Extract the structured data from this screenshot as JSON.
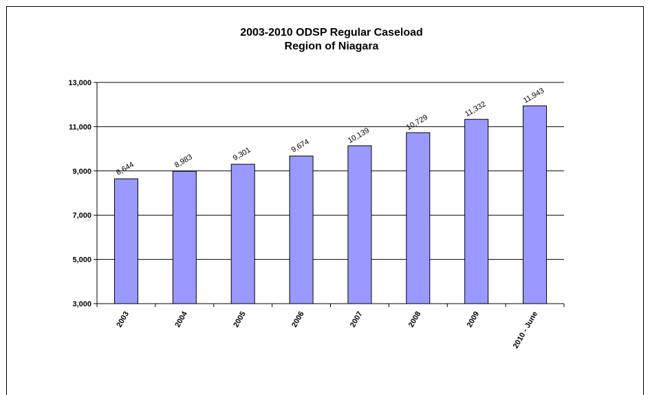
{
  "chart_data": {
    "type": "bar",
    "title_line1": "2003-2010 ODSP Regular Caseload",
    "title_line2": "Region of Niagara",
    "categories": [
      "2003",
      "2004",
      "2005",
      "2006",
      "2007",
      "2008",
      "2009",
      "2010 - June"
    ],
    "values": [
      8644,
      8983,
      9301,
      9674,
      10139,
      10729,
      11332,
      11943
    ],
    "data_labels": [
      "8,644",
      "8,983",
      "9,301",
      "9,674",
      "10,139",
      "10,729",
      "11,332",
      "11,943"
    ],
    "ylim": [
      3000,
      13000
    ],
    "yticks": [
      3000,
      5000,
      7000,
      9000,
      11000,
      13000
    ],
    "ytick_labels": [
      "3,000",
      "5,000",
      "7,000",
      "9,000",
      "11,000",
      "13,000"
    ],
    "grid": true,
    "legend": "none",
    "bar_color": "#9999ff",
    "bar_border_color": "#000000"
  }
}
